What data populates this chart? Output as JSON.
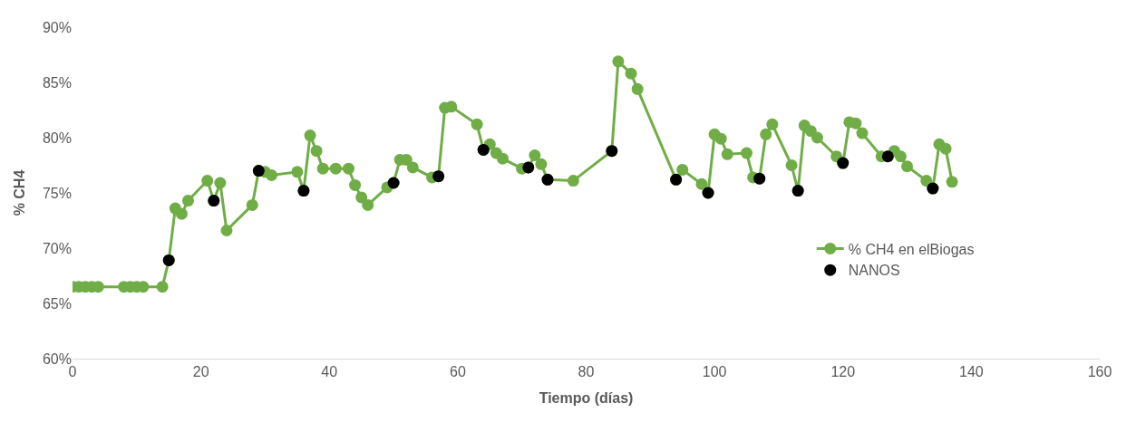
{
  "chart_data": {
    "type": "line",
    "xlabel": "Tiempo (días)",
    "ylabel": "% CH4",
    "xlim": [
      0,
      160
    ],
    "xticks": [
      0,
      20,
      40,
      60,
      80,
      100,
      120,
      140,
      160
    ],
    "ylim": [
      60,
      90
    ],
    "yticks": [
      {
        "value": 60,
        "label": "60%"
      },
      {
        "value": 65,
        "label": "65%"
      },
      {
        "value": 70,
        "label": "70%"
      },
      {
        "value": 75,
        "label": "75%"
      },
      {
        "value": 80,
        "label": "80%"
      },
      {
        "value": 85,
        "label": "85%"
      },
      {
        "value": 90,
        "label": "90%"
      }
    ],
    "legend": "bottom right",
    "marker": "circle",
    "series": [
      {
        "name": "% CH4 en elBiogas",
        "color": "#70ad47",
        "x": [
          0,
          1,
          2,
          3,
          4,
          8,
          9,
          10,
          11,
          14,
          15,
          16,
          17,
          18,
          21,
          22,
          23,
          24,
          28,
          29,
          30,
          31,
          35,
          36,
          37,
          38,
          39,
          41,
          43,
          44,
          45,
          46,
          49,
          50,
          51,
          52,
          53,
          56,
          57,
          58,
          59,
          63,
          64,
          65,
          66,
          67,
          70,
          71,
          72,
          73,
          74,
          78,
          84,
          85,
          87,
          88,
          94,
          95,
          98,
          99,
          100,
          101,
          102,
          105,
          106,
          107,
          108,
          109,
          112,
          113,
          114,
          115,
          116,
          119,
          120,
          121,
          122,
          123,
          126,
          127,
          128,
          129,
          130,
          133,
          134,
          135,
          136,
          137
        ],
        "values": [
          66.5,
          66.5,
          66.5,
          66.5,
          66.5,
          66.5,
          66.5,
          66.5,
          66.5,
          66.5,
          68.9,
          73.6,
          73.1,
          74.3,
          76.1,
          74.3,
          75.9,
          71.6,
          73.9,
          77.0,
          76.9,
          76.6,
          76.9,
          75.2,
          80.2,
          78.8,
          77.2,
          77.2,
          77.2,
          75.7,
          74.6,
          73.9,
          75.5,
          75.9,
          78.0,
          78.0,
          77.3,
          76.4,
          76.5,
          82.7,
          82.8,
          81.2,
          78.9,
          79.4,
          78.6,
          78.1,
          77.2,
          77.3,
          78.4,
          77.6,
          76.2,
          76.1,
          78.8,
          86.9,
          85.8,
          84.4,
          76.2,
          77.1,
          75.8,
          75.0,
          80.3,
          79.9,
          78.5,
          78.6,
          76.4,
          76.3,
          80.3,
          81.2,
          77.5,
          75.2,
          81.1,
          80.6,
          80.0,
          78.3,
          77.7,
          81.4,
          81.3,
          80.4,
          78.3,
          78.3,
          78.8,
          78.3,
          77.4,
          76.1,
          75.4,
          79.4,
          79.0,
          76.0
        ]
      },
      {
        "name": "NANOS",
        "color": "#000000",
        "type": "scatter",
        "x": [
          15,
          22,
          29,
          36,
          50,
          57,
          64,
          71,
          74,
          84,
          94,
          99,
          107,
          113,
          120,
          127,
          134
        ],
        "values": [
          68.9,
          74.3,
          77.0,
          75.2,
          75.9,
          76.5,
          78.9,
          77.3,
          76.2,
          78.8,
          76.2,
          75.0,
          76.3,
          75.2,
          77.7,
          78.3,
          75.4
        ]
      }
    ]
  }
}
